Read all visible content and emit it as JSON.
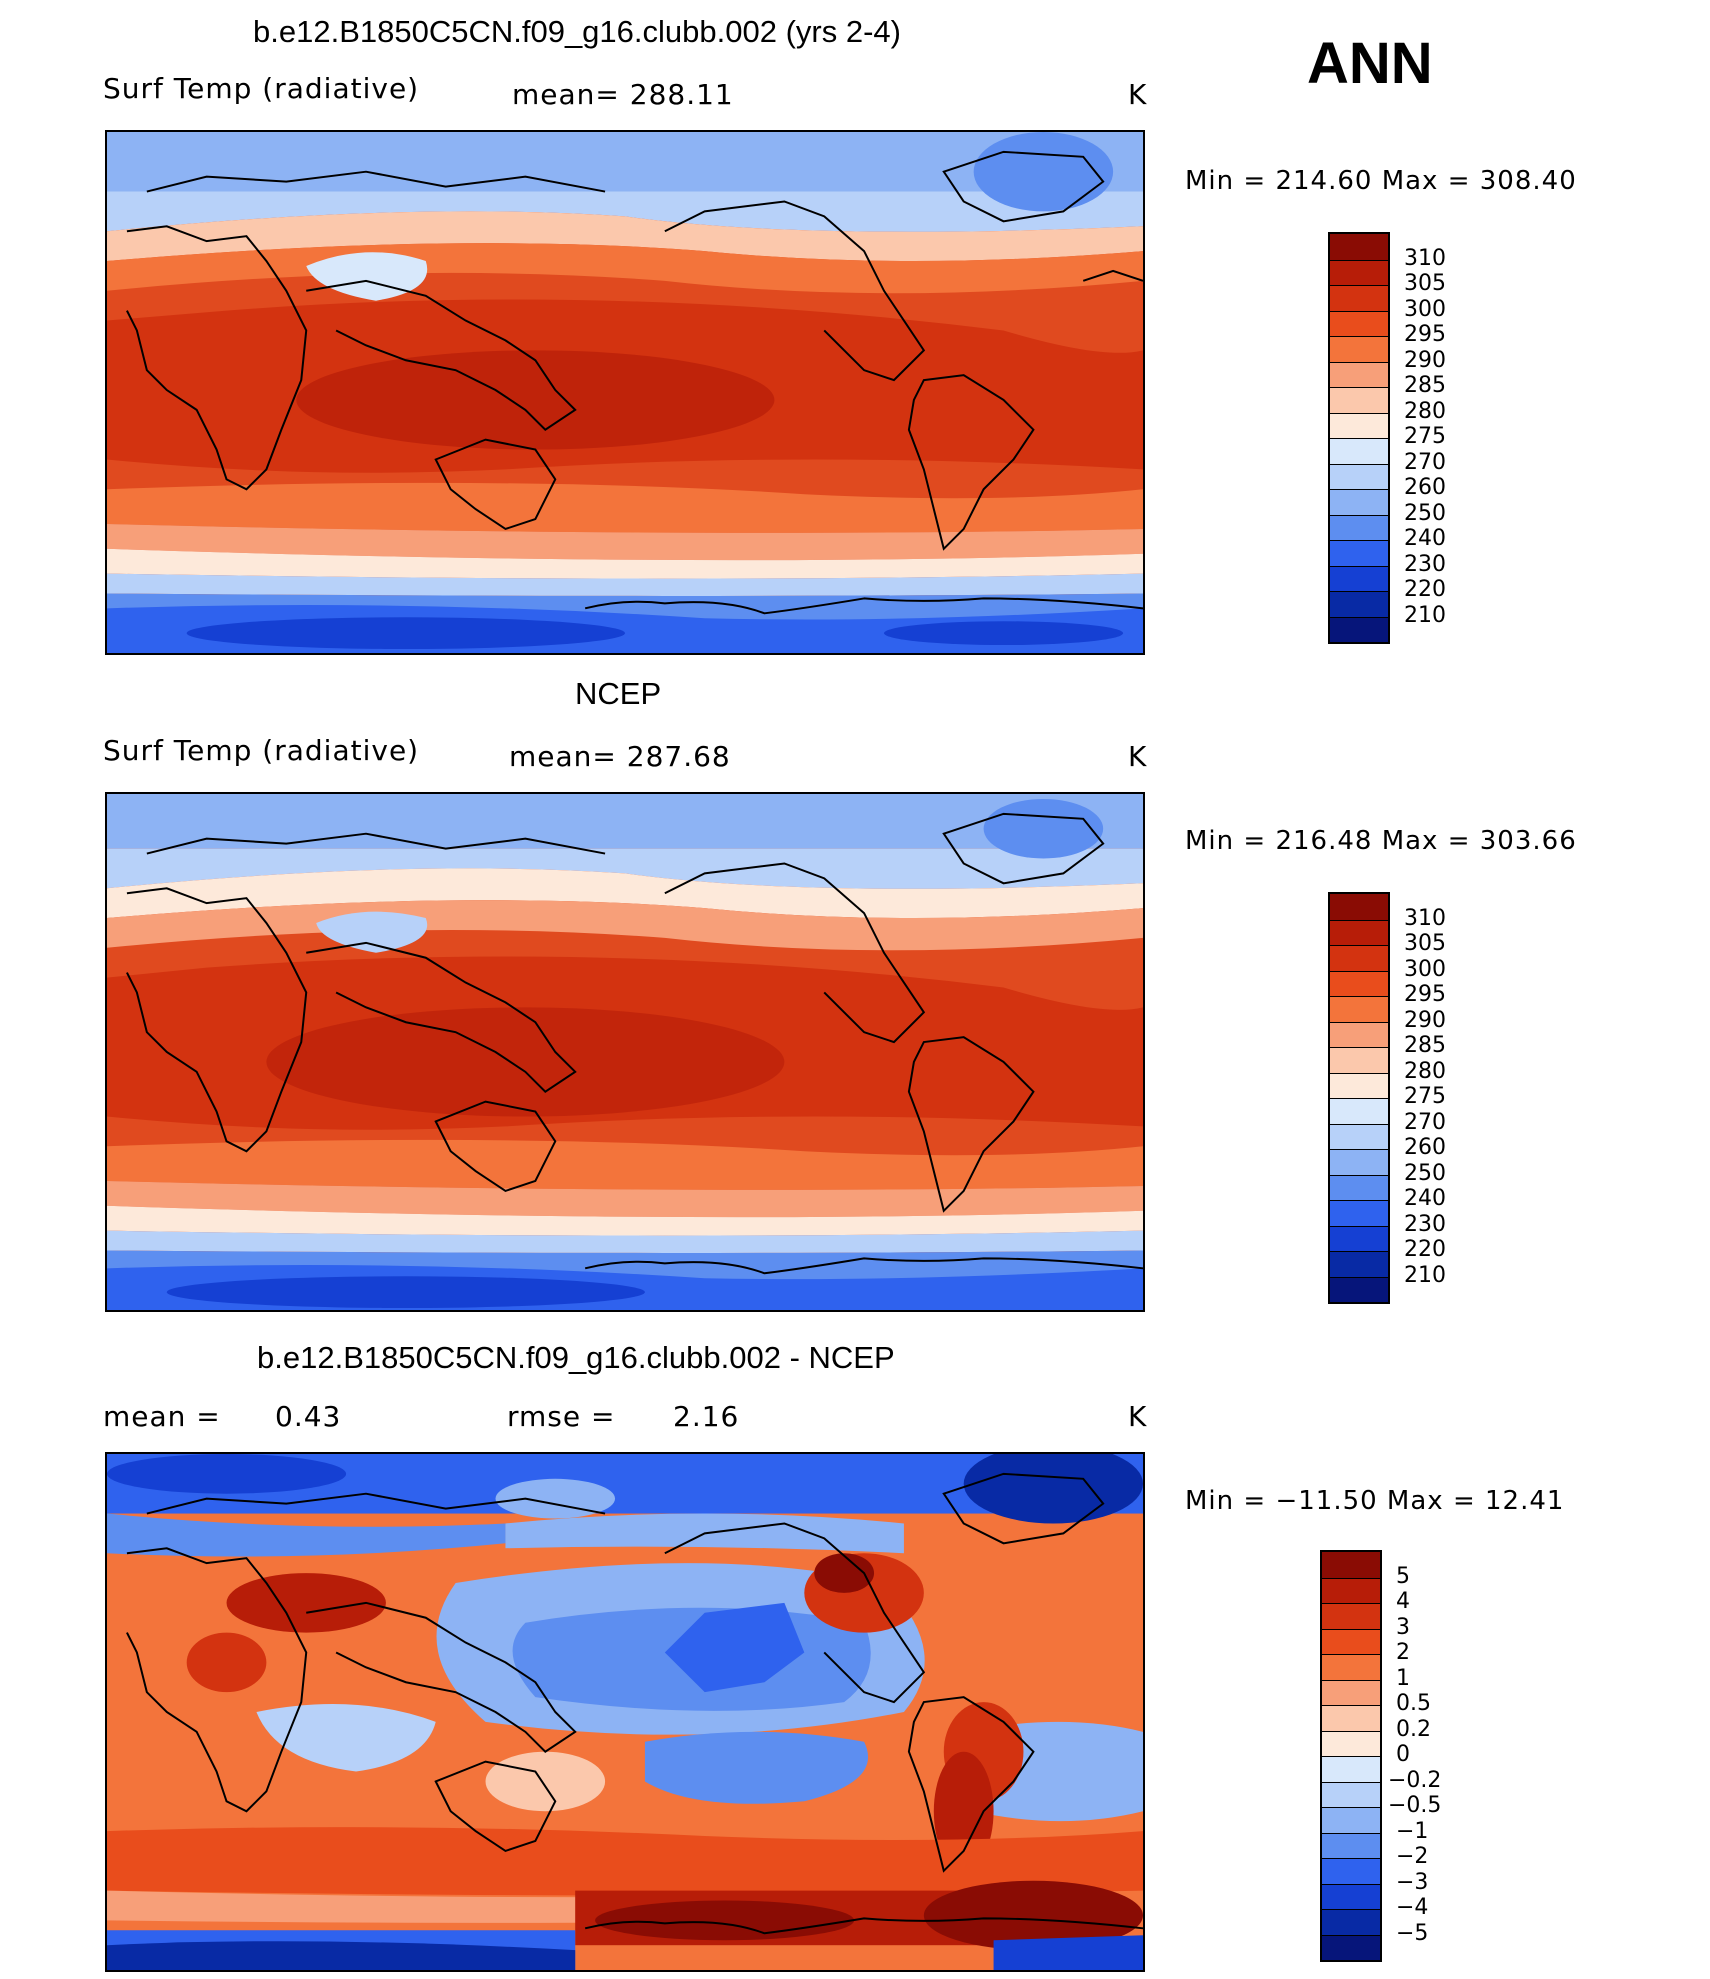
{
  "header": {
    "season": "ANN"
  },
  "panels": [
    {
      "title": "b.e12.B1850C5CN.f09_g16.clubb.002 (yrs 2-4)",
      "left_label": "Surf Temp (radiative)",
      "center_label": "mean= 288.11",
      "units": "K",
      "stats": "Min = 214.60 Max = 308.40",
      "colorbar": {
        "labels": [
          "310",
          "305",
          "300",
          "295",
          "290",
          "285",
          "280",
          "275",
          "270",
          "260",
          "250",
          "240",
          "230",
          "220",
          "210"
        ],
        "colors": [
          "#8a0c04",
          "#b71d08",
          "#d33310",
          "#e94d1c",
          "#f3743b",
          "#f79f79",
          "#fbc8ac",
          "#fde9da",
          "#d8e8fb",
          "#b7d1f9",
          "#8db3f4",
          "#5d8ef0",
          "#2f62ee",
          "#1540d3",
          "#082aa5",
          "#06157a"
        ]
      },
      "map_style": "absolute"
    },
    {
      "title": "NCEP",
      "left_label": "Surf Temp (radiative)",
      "center_label": "mean= 287.68",
      "units": "K",
      "stats": "Min = 216.48 Max = 303.66",
      "colorbar": {
        "labels": [
          "310",
          "305",
          "300",
          "295",
          "290",
          "285",
          "280",
          "275",
          "270",
          "260",
          "250",
          "240",
          "230",
          "220",
          "210"
        ],
        "colors": [
          "#8a0c04",
          "#b71d08",
          "#d33310",
          "#e94d1c",
          "#f3743b",
          "#f79f79",
          "#fbc8ac",
          "#fde9da",
          "#d8e8fb",
          "#b7d1f9",
          "#8db3f4",
          "#5d8ef0",
          "#2f62ee",
          "#1540d3",
          "#082aa5",
          "#06157a"
        ]
      },
      "map_style": "absolute"
    },
    {
      "title": "b.e12.B1850C5CN.f09_g16.clubb.002 - NCEP",
      "left_label": "mean =",
      "left_value": "0.43",
      "center_label": "rmse =",
      "center_value": "2.16",
      "units": "K",
      "stats": "Min = −11.50 Max = 12.41",
      "colorbar": {
        "labels": [
          "5",
          "4",
          "3",
          "2",
          "1",
          "0.5",
          "0.2",
          "0",
          "−0.2",
          "−0.5",
          "−1",
          "−2",
          "−3",
          "−4",
          "−5"
        ],
        "colors": [
          "#8a0c04",
          "#b71d08",
          "#d33310",
          "#e94d1c",
          "#f3743b",
          "#f79f79",
          "#fbc8ac",
          "#fde9da",
          "#d8e8fb",
          "#b7d1f9",
          "#8db3f4",
          "#5d8ef0",
          "#2f62ee",
          "#1540d3",
          "#082aa5",
          "#06157a"
        ]
      },
      "map_style": "difference"
    }
  ]
}
